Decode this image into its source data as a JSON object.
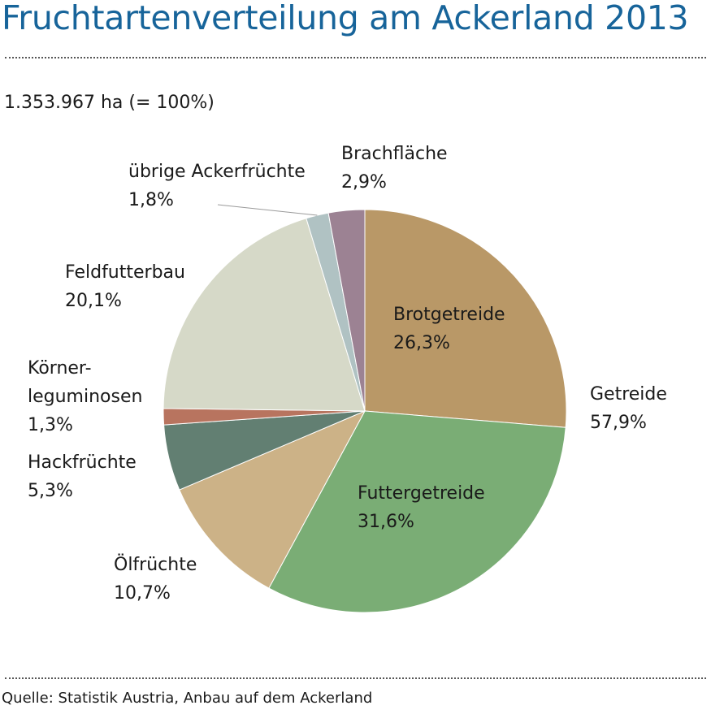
{
  "header": {
    "title": "Fruchtartenverteilung am Ackerland 2013",
    "subtitle": "1.353.967 ha (= 100%)"
  },
  "footer": {
    "source": "Quelle: Statistik Austria, Anbau auf dem Ackerland"
  },
  "chart_data": {
    "type": "pie",
    "title": "Fruchtartenverteilung am Ackerland 2013",
    "total_label": "1.353.967 ha (= 100%)",
    "unit": "%",
    "slices": [
      {
        "label": "Brotgetreide",
        "value": 26.3,
        "value_label": "26,3%",
        "color": "#b99867",
        "group": "Getreide"
      },
      {
        "label": "Futtergetreide",
        "value": 31.6,
        "value_label": "31,6%",
        "color": "#7aad75",
        "group": "Getreide"
      },
      {
        "label": "Ölfrüchte",
        "value": 10.7,
        "value_label": "10,7%",
        "color": "#ccb287"
      },
      {
        "label": "Hackfrüchte",
        "value": 5.3,
        "value_label": "5,3%",
        "color": "#627f72"
      },
      {
        "label_lines": [
          "Körner-",
          "leguminosen"
        ],
        "label": "Körner-leguminosen",
        "value": 1.3,
        "value_label": "1,3%",
        "color": "#b8745f"
      },
      {
        "label": "Feldfutterbau",
        "value": 20.1,
        "value_label": "20,1%",
        "color": "#d6d9c8"
      },
      {
        "label": "übrige Ackerfrüchte",
        "value": 1.8,
        "value_label": "1,8%",
        "color": "#b0c2c3"
      },
      {
        "label": "Brachfläche",
        "value": 2.9,
        "value_label": "2,9%",
        "color": "#9c8293"
      }
    ],
    "groups": [
      {
        "label": "Getreide",
        "value": 57.9,
        "value_label": "57,9%"
      }
    ],
    "legend": "none"
  }
}
